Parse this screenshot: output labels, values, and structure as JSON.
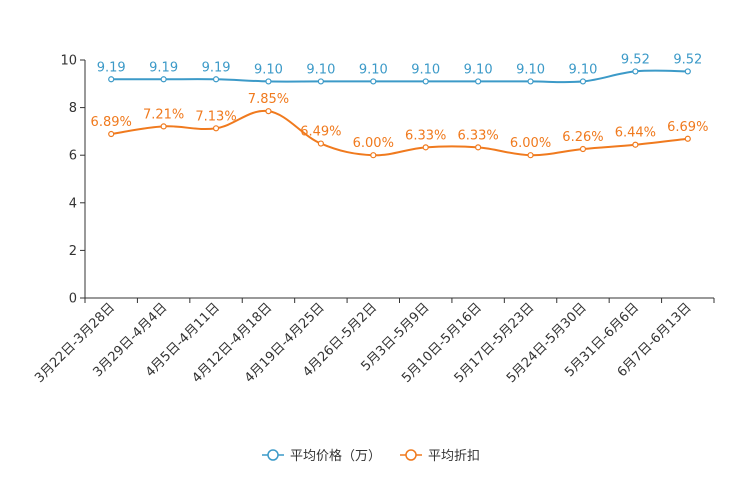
{
  "chart_data": {
    "type": "line",
    "categories": [
      "3月22日-3月28日",
      "3月29日-4月4日",
      "4月5日-4月11日",
      "4月12日-4月18日",
      "4月19日-4月25日",
      "4月26日-5月2日",
      "5月3日-5月9日",
      "5月10日-5月16日",
      "5月17日-5月23日",
      "5月24日-5月30日",
      "5月31日-6月6日",
      "6月7日-6月13日"
    ],
    "ylim": [
      0,
      10
    ],
    "yticks": [
      "0",
      "2",
      "4",
      "6",
      "8",
      "10"
    ],
    "ytick_values": [
      0,
      2,
      4,
      6,
      8,
      10
    ],
    "series": [
      {
        "name": "平均价格（万）",
        "color": "#3c9ac8",
        "values": [
          9.19,
          9.19,
          9.19,
          9.1,
          9.1,
          9.1,
          9.1,
          9.1,
          9.1,
          9.1,
          9.52,
          9.52
        ],
        "labels": [
          "9.19",
          "9.19",
          "9.19",
          "9.10",
          "9.10",
          "9.10",
          "9.10",
          "9.10",
          "9.10",
          "9.10",
          "9.52",
          "9.52"
        ]
      },
      {
        "name": "平均折扣",
        "color": "#f07a1e",
        "values": [
          6.89,
          7.21,
          7.13,
          7.85,
          6.49,
          6.0,
          6.33,
          6.33,
          6.0,
          6.26,
          6.44,
          6.69
        ],
        "labels": [
          "6.89%",
          "7.21%",
          "7.13%",
          "7.85%",
          "6.49%",
          "6.00%",
          "6.33%",
          "6.33%",
          "6.00%",
          "6.26%",
          "6.44%",
          "6.69%"
        ]
      }
    ],
    "legend": {
      "position": "bottom-center"
    },
    "grid": false
  }
}
